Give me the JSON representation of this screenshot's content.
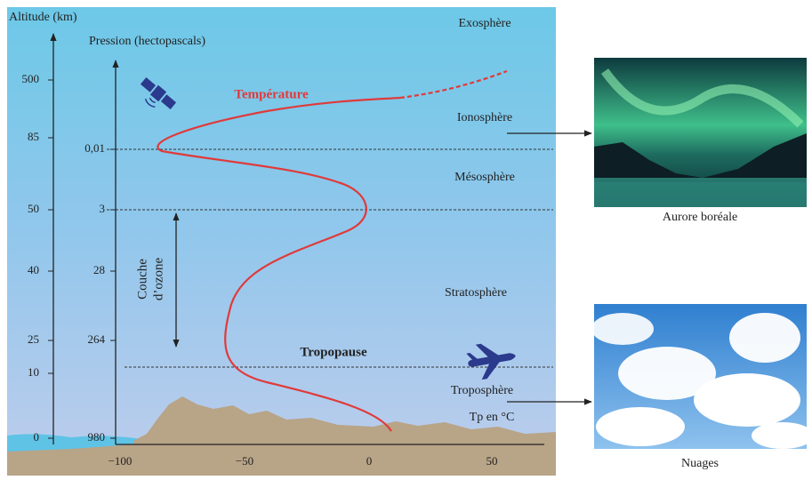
{
  "altitude_axis": {
    "title": "Altitude (km)",
    "labels": [
      "500",
      "85",
      "50",
      "40",
      "25",
      "10",
      "0"
    ]
  },
  "pressure_axis": {
    "title": "Pression (hectopascals)",
    "labels": [
      "0,01",
      "3",
      "28",
      "264",
      "980"
    ]
  },
  "temperature_axis": {
    "title": "Tp en °C",
    "labels": [
      "−100",
      "−50",
      "0",
      "50"
    ]
  },
  "curve_label": "Température",
  "layers": {
    "exosphere": "Exosphère",
    "ionosphere": "Ionosphère",
    "mesosphere": "Mésosphère",
    "stratosphere": "Stratosphère",
    "tropopause": "Tropopause",
    "troposphere": "Troposphère"
  },
  "ozone_label": [
    "Couche",
    "d’ozone"
  ],
  "images": [
    {
      "caption": "Aurore boréale"
    },
    {
      "caption": "Nuages"
    }
  ]
}
